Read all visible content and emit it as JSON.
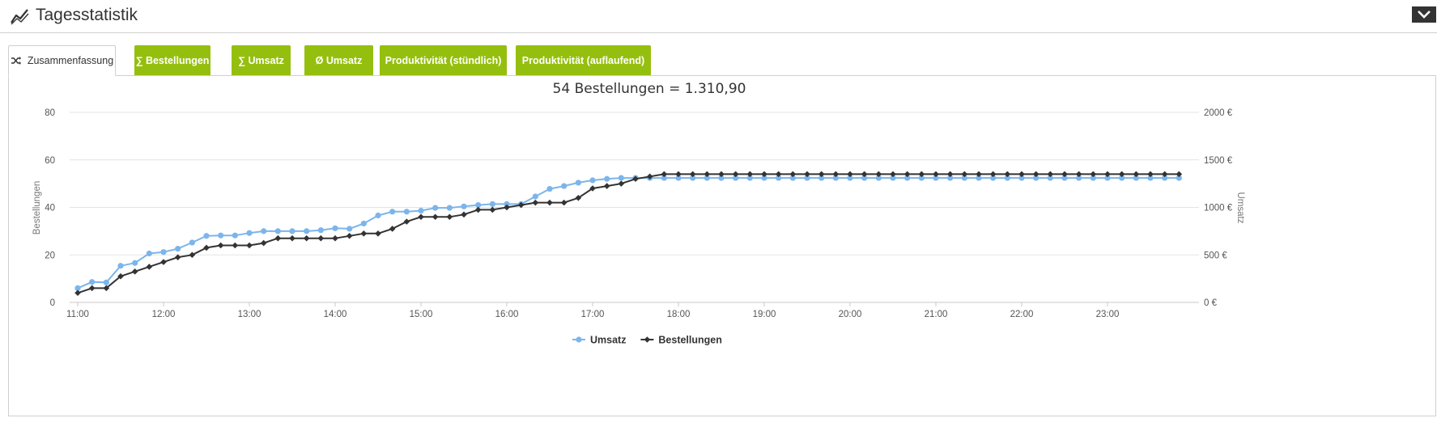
{
  "header": {
    "title": "Tagesstatistik",
    "icon": "trend-chart-icon",
    "collapse_icon": "chevron-down-icon"
  },
  "tabs": [
    {
      "label": "Zusammenfassung",
      "icon": "shuffle-icon",
      "active": true
    },
    {
      "label": "∑ Bestellungen",
      "active": false
    },
    {
      "label": "∑ Umsatz",
      "active": false
    },
    {
      "label": "Ø Umsatz",
      "active": false
    },
    {
      "label": "Produktivität (stündlich)",
      "active": false
    },
    {
      "label": "Produktivität (auflaufend)",
      "active": false
    }
  ],
  "colors": {
    "tab_green": "#95bf0e",
    "umsatz": "#7cb5ec",
    "bestellungen": "#333333",
    "grid": "#e3e3e3"
  },
  "chart_data": {
    "type": "line",
    "title": "54 Bestellungen = 1.310,90",
    "x_labels": [
      "11:00",
      "12:00",
      "13:00",
      "14:00",
      "15:00",
      "16:00",
      "17:00",
      "18:00",
      "19:00",
      "20:00",
      "21:00",
      "22:00",
      "23:00"
    ],
    "x_start": "11:00",
    "x_end": "23:50",
    "x_interval_minutes": 10,
    "y_left": {
      "label": "Bestellungen",
      "range": [
        0,
        80
      ],
      "ticks": [
        "0",
        "20",
        "40",
        "60",
        "80"
      ]
    },
    "y_right": {
      "label": "Umsatz",
      "range": [
        0,
        2000
      ],
      "ticks": [
        "0 €",
        "500 €",
        "1000 €",
        "1500 €",
        "2000 €"
      ]
    },
    "grid": true,
    "legend_position": "bottom-center",
    "series": [
      {
        "name": "Umsatz",
        "axis": "right",
        "marker": "circle",
        "values": [
          150,
          215,
          210,
          385,
          415,
          515,
          530,
          565,
          630,
          700,
          705,
          705,
          730,
          750,
          750,
          750,
          750,
          760,
          780,
          775,
          830,
          915,
          955,
          955,
          965,
          995,
          995,
          1010,
          1025,
          1035,
          1035,
          1035,
          1115,
          1195,
          1225,
          1260,
          1285,
          1300,
          1310,
          1310,
          1310,
          1310,
          1310,
          1310,
          1310,
          1310,
          1310,
          1310,
          1310,
          1310,
          1310,
          1310,
          1310,
          1310,
          1310,
          1310,
          1310,
          1310,
          1310,
          1310,
          1310,
          1310,
          1310,
          1310,
          1310,
          1310,
          1310,
          1310,
          1310,
          1310,
          1310,
          1310,
          1310,
          1310,
          1310,
          1310,
          1310,
          1310
        ]
      },
      {
        "name": "Bestellungen",
        "axis": "left",
        "marker": "diamond",
        "values": [
          4,
          6,
          6,
          11,
          13,
          15,
          17,
          19,
          20,
          23,
          24,
          24,
          24,
          25,
          27,
          27,
          27,
          27,
          27,
          28,
          29,
          29,
          31,
          34,
          36,
          36,
          36,
          37,
          39,
          39,
          40,
          41,
          42,
          42,
          42,
          44,
          48,
          49,
          50,
          52,
          53,
          54,
          54,
          54,
          54,
          54,
          54,
          54,
          54,
          54,
          54,
          54,
          54,
          54,
          54,
          54,
          54,
          54,
          54,
          54,
          54,
          54,
          54,
          54,
          54,
          54,
          54,
          54,
          54,
          54,
          54,
          54,
          54,
          54,
          54,
          54,
          54,
          54
        ]
      }
    ]
  }
}
